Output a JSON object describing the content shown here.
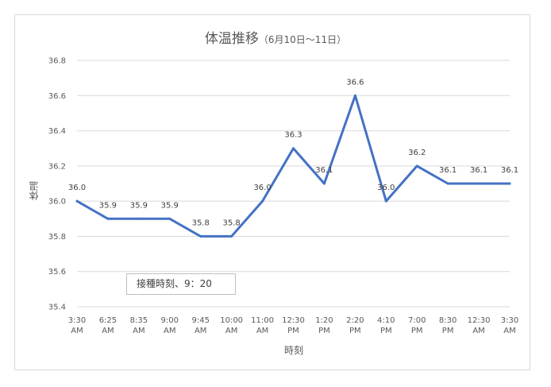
{
  "chart_data": {
    "type": "line",
    "title": "体温推移",
    "subtitle": "（6月10日～11日）",
    "xlabel": "時刻",
    "ylabel": "体温",
    "ylim": [
      35.4,
      36.8
    ],
    "yticks": [
      "35.4",
      "35.6",
      "35.8",
      "36.0",
      "36.2",
      "36.4",
      "36.6",
      "36.8"
    ],
    "grid": true,
    "categories": [
      [
        "3:30",
        "AM"
      ],
      [
        "6:25",
        "AM"
      ],
      [
        "8:35",
        "AM"
      ],
      [
        "9:00",
        "AM"
      ],
      [
        "9:45",
        "AM"
      ],
      [
        "10:00",
        "AM"
      ],
      [
        "11:00",
        "AM"
      ],
      [
        "12:30",
        "PM"
      ],
      [
        "1:20",
        "PM"
      ],
      [
        "2:20",
        "PM"
      ],
      [
        "4:10",
        "PM"
      ],
      [
        "7:00",
        "PM"
      ],
      [
        "8:30",
        "PM"
      ],
      [
        "12:30",
        "AM"
      ],
      [
        "3:30",
        "AM"
      ]
    ],
    "series": [
      {
        "color": "#4472c4",
        "values": [
          36.0,
          35.9,
          35.9,
          35.9,
          35.8,
          35.8,
          36.0,
          36.3,
          36.1,
          36.6,
          36.0,
          36.2,
          36.1,
          36.1,
          36.1
        ],
        "labels": [
          "36.0",
          "35.9",
          "35.9",
          "35.9",
          "35.8",
          "35.8",
          "36.0",
          "36.3",
          "36.1",
          "36.6",
          "36.0",
          "36.2",
          "36.1",
          "36.1",
          "36.1"
        ]
      }
    ],
    "annotation": "接種時刻、9：20"
  }
}
